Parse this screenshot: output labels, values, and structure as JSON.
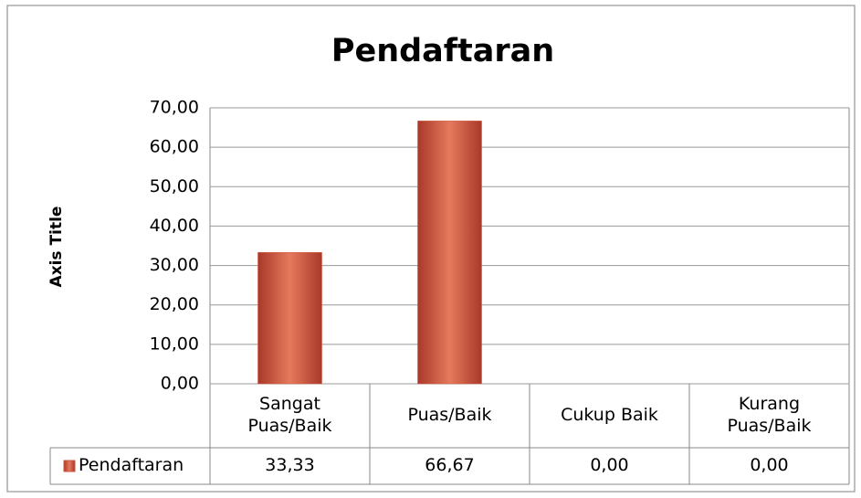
{
  "chart_data": {
    "type": "bar",
    "title": "Pendaftaran",
    "y_axis_label": "Axis Title",
    "categories": [
      "Sangat\nPuas/Baik",
      "Puas/Baik",
      "Cukup Baik",
      "Kurang\nPuas/Baik"
    ],
    "series": [
      {
        "name": "Pendaftaran",
        "color": "#d2553a",
        "values": [
          33.33,
          66.67,
          0,
          0
        ],
        "value_labels": [
          "33,33",
          "66,67",
          "0,00",
          "0,00"
        ]
      }
    ],
    "ylim": [
      0,
      70
    ],
    "yticks": [
      {
        "value": 0,
        "label": "0,00"
      },
      {
        "value": 10,
        "label": "10,00"
      },
      {
        "value": 20,
        "label": "20,00"
      },
      {
        "value": 30,
        "label": "30,00"
      },
      {
        "value": 40,
        "label": "40,00"
      },
      {
        "value": 50,
        "label": "50,00"
      },
      {
        "value": 60,
        "label": "60,00"
      },
      {
        "value": 70,
        "label": "70,00"
      }
    ],
    "grid": true,
    "data_table": true
  }
}
